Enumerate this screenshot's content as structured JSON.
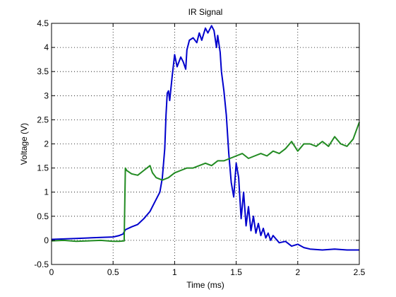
{
  "chart_data": {
    "type": "line",
    "title": "IR Signal",
    "xlabel": "Time (ms)",
    "ylabel": "Voltage (V)",
    "xlim": [
      0,
      2.5
    ],
    "ylim": [
      -0.5,
      4.5
    ],
    "xticks": [
      "0",
      "0.5",
      "1",
      "1.5",
      "2",
      "2.5"
    ],
    "yticks": [
      "-0.5",
      "0",
      "0.5",
      "1",
      "1.5",
      "2",
      "2.5",
      "3",
      "3.5",
      "4",
      "4.5"
    ],
    "grid": true,
    "series": [
      {
        "color": "#0000cc",
        "x": [
          0,
          0.1,
          0.2,
          0.3,
          0.4,
          0.5,
          0.55,
          0.58,
          0.6,
          0.65,
          0.7,
          0.75,
          0.8,
          0.85,
          0.88,
          0.9,
          0.92,
          0.93,
          0.94,
          0.95,
          0.96,
          0.98,
          1.0,
          1.02,
          1.05,
          1.07,
          1.09,
          1.1,
          1.12,
          1.15,
          1.18,
          1.2,
          1.22,
          1.25,
          1.27,
          1.3,
          1.32,
          1.34,
          1.35,
          1.37,
          1.38,
          1.4,
          1.42,
          1.44,
          1.46,
          1.48,
          1.5,
          1.52,
          1.54,
          1.56,
          1.58,
          1.6,
          1.62,
          1.64,
          1.66,
          1.68,
          1.7,
          1.72,
          1.74,
          1.76,
          1.78,
          1.8,
          1.85,
          1.9,
          1.95,
          2.0,
          2.05,
          2.1,
          2.2,
          2.3,
          2.4,
          2.5
        ],
        "y": [
          0.02,
          0.03,
          0.04,
          0.05,
          0.06,
          0.07,
          0.1,
          0.13,
          0.22,
          0.28,
          0.33,
          0.45,
          0.6,
          0.85,
          1.0,
          1.3,
          1.9,
          2.6,
          3.05,
          3.1,
          2.9,
          3.4,
          3.85,
          3.6,
          3.8,
          3.7,
          3.55,
          3.95,
          4.15,
          4.2,
          4.1,
          4.3,
          4.15,
          4.4,
          4.3,
          4.45,
          4.35,
          4.0,
          4.25,
          3.9,
          3.5,
          3.1,
          2.6,
          1.8,
          1.2,
          0.9,
          1.6,
          1.3,
          0.45,
          1.0,
          0.3,
          0.7,
          0.2,
          0.5,
          0.15,
          0.35,
          0.1,
          0.25,
          0.05,
          0.15,
          0.0,
          0.1,
          -0.05,
          -0.02,
          -0.12,
          -0.08,
          -0.15,
          -0.18,
          -0.2,
          -0.18,
          -0.2,
          -0.2
        ]
      },
      {
        "color": "#228b22",
        "x": [
          0,
          0.1,
          0.2,
          0.3,
          0.4,
          0.5,
          0.55,
          0.59,
          0.6,
          0.61,
          0.65,
          0.7,
          0.75,
          0.8,
          0.82,
          0.85,
          0.9,
          0.95,
          1.0,
          1.05,
          1.1,
          1.15,
          1.2,
          1.25,
          1.3,
          1.35,
          1.4,
          1.45,
          1.5,
          1.55,
          1.6,
          1.65,
          1.7,
          1.75,
          1.8,
          1.85,
          1.9,
          1.95,
          2.0,
          2.05,
          2.1,
          2.15,
          2.2,
          2.25,
          2.3,
          2.35,
          2.4,
          2.45,
          2.5
        ],
        "y": [
          -0.01,
          0.0,
          -0.02,
          -0.01,
          0.0,
          -0.02,
          -0.02,
          -0.01,
          1.5,
          1.45,
          1.38,
          1.35,
          1.45,
          1.55,
          1.4,
          1.3,
          1.25,
          1.3,
          1.4,
          1.45,
          1.5,
          1.5,
          1.55,
          1.6,
          1.55,
          1.65,
          1.65,
          1.7,
          1.75,
          1.8,
          1.7,
          1.75,
          1.8,
          1.75,
          1.85,
          1.8,
          1.9,
          2.05,
          1.85,
          2.0,
          2.0,
          1.95,
          2.05,
          1.95,
          2.15,
          2.0,
          1.95,
          2.1,
          2.45
        ]
      }
    ]
  }
}
